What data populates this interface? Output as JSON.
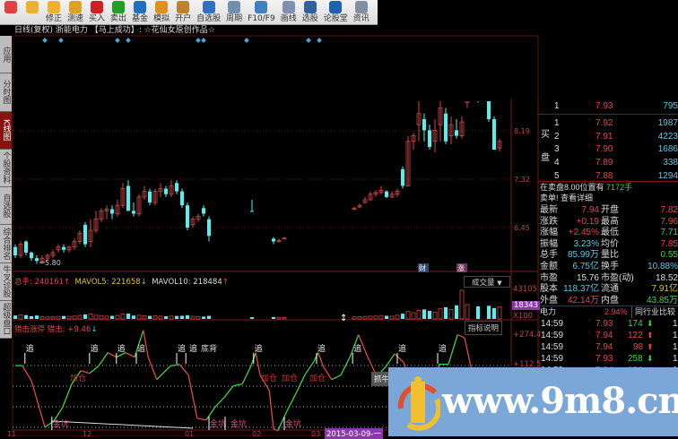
{
  "toolbar": {
    "items": [
      {
        "label": "",
        "icon": "color-blocks-icon",
        "color": "#e04040"
      },
      {
        "label": "",
        "icon": "back-arrow-icon",
        "color": "#f0b030"
      },
      {
        "label": "修正",
        "icon": "up-down-icon",
        "color": "#f0b030"
      },
      {
        "label": "测速",
        "icon": "speed-icon",
        "color": "#e0a020"
      },
      {
        "label": "买入",
        "icon": "buy-icon",
        "color": "#d02020"
      },
      {
        "label": "卖出",
        "icon": "sell-icon",
        "color": "#20a020"
      },
      {
        "label": "基金",
        "icon": "fund-icon",
        "color": "#2070c0"
      },
      {
        "label": "模拟",
        "icon": "search-icon",
        "color": "#e09020"
      },
      {
        "label": "开户",
        "icon": "lock-icon",
        "color": "#c08030"
      },
      {
        "label": "自选股",
        "icon": "star-icon",
        "color": "#3070c0"
      },
      {
        "label": "周期",
        "icon": "clock-icon",
        "color": "#7090b0"
      },
      {
        "label": "F10/F9",
        "icon": "f10-icon",
        "color": "#4080c0"
      },
      {
        "label": "画线",
        "icon": "pen-icon",
        "color": "#8090b0"
      },
      {
        "label": "选股",
        "icon": "select-stock-icon",
        "color": "#3060a0"
      },
      {
        "label": "论股堂",
        "icon": "forum-icon",
        "color": "#2060b0"
      },
      {
        "label": "资讯",
        "icon": "news-icon",
        "color": "#8090a0"
      }
    ]
  },
  "sidebar": {
    "items": [
      {
        "label": "应用"
      },
      {
        "label": "分时图"
      },
      {
        "label": "K线图",
        "active": true
      },
      {
        "label": "个股资料"
      },
      {
        "label": "自选股"
      },
      {
        "label": "综合排名"
      },
      {
        "label": "牛叉诊股"
      },
      {
        "label": "超级盘口"
      }
    ]
  },
  "chart": {
    "title": "日线(复权)  浙能电力 【马上成功】: ☆花仙女原创作品☆",
    "price_ticks": [
      "8.19",
      "7.32",
      "6.45"
    ],
    "low_marker": "5.80",
    "event_badges": [
      "财",
      "涨"
    ],
    "colors": {
      "up": "#d04848",
      "down": "#54f0f0",
      "grid": "#5a1010"
    }
  },
  "chart_data": {
    "type": "candlestick",
    "price_ticks": [
      8.19,
      7.32,
      6.45
    ],
    "candles": [
      {
        "bar": 0,
        "o": 6.1,
        "c": 5.95,
        "h": 6.15,
        "l": 5.9,
        "v": 5200
      },
      {
        "bar": 1,
        "o": 5.95,
        "c": 6.15,
        "h": 6.2,
        "l": 5.9,
        "v": 6100
      },
      {
        "bar": 2,
        "o": 6.2,
        "c": 6.0,
        "h": 6.22,
        "l": 5.95,
        "v": 5800
      },
      {
        "bar": 3,
        "o": 6.0,
        "c": 5.9,
        "h": 6.02,
        "l": 5.85,
        "v": 4200
      },
      {
        "bar": 4,
        "o": 5.9,
        "c": 5.85,
        "h": 5.95,
        "l": 5.8,
        "v": 5200
      },
      {
        "bar": 5,
        "o": 5.85,
        "c": 5.9,
        "h": 5.95,
        "l": 5.8,
        "v": 3600
      },
      {
        "bar": 6,
        "o": 5.9,
        "c": 5.95,
        "h": 5.98,
        "l": 5.85,
        "v": 3000
      },
      {
        "bar": 7,
        "o": 5.95,
        "c": 6.0,
        "h": 6.05,
        "l": 5.9,
        "v": 3300
      },
      {
        "bar": 8,
        "o": 6.05,
        "c": 6.1,
        "h": 6.15,
        "l": 6.0,
        "v": 3800
      },
      {
        "bar": 9,
        "o": 6.1,
        "c": 6.05,
        "h": 6.15,
        "l": 6.0,
        "v": 4500
      },
      {
        "bar": 10,
        "o": 6.05,
        "c": 6.1,
        "h": 6.12,
        "l": 6.0,
        "v": 3900
      },
      {
        "bar": 11,
        "o": 6.1,
        "c": 6.2,
        "h": 6.25,
        "l": 6.05,
        "v": 4300
      },
      {
        "bar": 12,
        "o": 6.2,
        "c": 6.35,
        "h": 6.4,
        "l": 6.15,
        "v": 5400
      },
      {
        "bar": 13,
        "o": 6.5,
        "c": 6.15,
        "h": 6.55,
        "l": 6.1,
        "v": 6900
      },
      {
        "bar": 14,
        "o": 6.2,
        "c": 6.4,
        "h": 6.6,
        "l": 6.1,
        "v": 7800
      },
      {
        "bar": 15,
        "o": 6.4,
        "c": 6.6,
        "h": 6.75,
        "l": 6.35,
        "v": 5600
      },
      {
        "bar": 16,
        "o": 6.6,
        "c": 6.75,
        "h": 6.8,
        "l": 6.55,
        "v": 5100
      },
      {
        "bar": 17,
        "o": 6.75,
        "c": 6.78,
        "h": 6.85,
        "l": 6.6,
        "v": 4300
      },
      {
        "bar": 18,
        "o": 6.78,
        "c": 6.7,
        "h": 6.85,
        "l": 6.6,
        "v": 4700
      },
      {
        "bar": 19,
        "o": 6.7,
        "c": 6.85,
        "h": 6.95,
        "l": 6.65,
        "v": 5300
      },
      {
        "bar": 20,
        "o": 6.85,
        "c": 7.15,
        "h": 7.25,
        "l": 6.8,
        "v": 7200
      },
      {
        "bar": 21,
        "o": 7.2,
        "c": 6.75,
        "h": 7.3,
        "l": 6.75,
        "v": 8100
      },
      {
        "bar": 22,
        "o": 6.75,
        "c": 6.7,
        "h": 6.9,
        "l": 6.65,
        "v": 5100
      },
      {
        "bar": 23,
        "o": 6.7,
        "c": 7.0,
        "h": 7.05,
        "l": 6.65,
        "v": 5500
      },
      {
        "bar": 24,
        "o": 7.0,
        "c": 7.1,
        "h": 7.2,
        "l": 6.95,
        "v": 4900
      },
      {
        "bar": 25,
        "o": 7.1,
        "c": 6.9,
        "h": 7.15,
        "l": 6.85,
        "v": 4600
      },
      {
        "bar": 26,
        "o": 6.9,
        "c": 7.1,
        "h": 7.15,
        "l": 6.85,
        "v": 4400
      },
      {
        "bar": 27,
        "o": 7.1,
        "c": 7.15,
        "h": 7.25,
        "l": 7.0,
        "v": 4200
      },
      {
        "bar": 28,
        "o": 7.15,
        "c": 7.05,
        "h": 7.2,
        "l": 7.0,
        "v": 4100
      },
      {
        "bar": 29,
        "o": 7.05,
        "c": 7.2,
        "h": 7.3,
        "l": 7.0,
        "v": 4300
      },
      {
        "bar": 30,
        "o": 7.25,
        "c": 7.1,
        "h": 7.3,
        "l": 7.05,
        "v": 4500
      },
      {
        "bar": 31,
        "o": 7.1,
        "c": 6.85,
        "h": 7.15,
        "l": 6.8,
        "v": 4800
      },
      {
        "bar": 32,
        "o": 6.85,
        "c": 6.45,
        "h": 6.9,
        "l": 6.4,
        "v": 5600
      },
      {
        "bar": 33,
        "o": 6.5,
        "c": 6.6,
        "h": 6.65,
        "l": 6.45,
        "v": 3900
      },
      {
        "bar": 34,
        "o": 6.6,
        "c": 6.65,
        "h": 6.7,
        "l": 6.55,
        "v": 3400
      },
      {
        "bar": 35,
        "o": 6.8,
        "c": 6.7,
        "h": 6.85,
        "l": 6.65,
        "v": 3500
      },
      {
        "bar": 36,
        "o": 6.6,
        "c": 6.3,
        "h": 6.65,
        "l": 6.2,
        "v": 4700
      },
      {
        "bar": 44,
        "o": 6.75,
        "c": 6.74,
        "h": 6.95,
        "l": 6.74,
        "v": 2600
      },
      {
        "bar": 48,
        "o": 6.25,
        "c": 6.2,
        "h": 6.28,
        "l": 6.15,
        "v": 2900
      },
      {
        "bar": 49,
        "o": 6.2,
        "c": 6.22,
        "h": 6.25,
        "l": 6.18,
        "v": 2400
      },
      {
        "bar": 50,
        "o": 6.25,
        "c": 6.26,
        "h": 6.28,
        "l": 6.24,
        "v": 2100
      },
      {
        "bar": 63,
        "o": 6.78,
        "c": 6.8,
        "h": 6.82,
        "l": 6.76,
        "v": 3100
      },
      {
        "bar": 64,
        "o": 6.82,
        "c": 6.85,
        "h": 6.88,
        "l": 6.8,
        "v": 3400
      },
      {
        "bar": 65,
        "o": 6.9,
        "c": 6.95,
        "h": 7.0,
        "l": 6.88,
        "v": 3800
      },
      {
        "bar": 66,
        "o": 6.95,
        "c": 7.05,
        "h": 7.1,
        "l": 6.93,
        "v": 4200
      },
      {
        "bar": 67,
        "o": 7.05,
        "c": 7.08,
        "h": 7.12,
        "l": 7.0,
        "v": 4400
      },
      {
        "bar": 68,
        "o": 7.08,
        "c": 7.12,
        "h": 7.2,
        "l": 7.05,
        "v": 5200
      },
      {
        "bar": 69,
        "o": 7.1,
        "c": 7.0,
        "h": 7.12,
        "l": 6.98,
        "v": 4800
      },
      {
        "bar": 70,
        "o": 7.0,
        "c": 7.05,
        "h": 7.1,
        "l": 6.98,
        "v": 4100
      },
      {
        "bar": 71,
        "o": 7.05,
        "c": 7.1,
        "h": 7.15,
        "l": 7.0,
        "v": 5600
      },
      {
        "bar": 72,
        "o": 7.5,
        "c": 7.2,
        "h": 7.55,
        "l": 7.15,
        "v": 7900
      },
      {
        "bar": 73,
        "o": 7.2,
        "c": 8.0,
        "h": 8.1,
        "l": 7.2,
        "v": 11200
      },
      {
        "bar": 74,
        "o": 8.0,
        "c": 8.1,
        "h": 8.15,
        "l": 7.85,
        "v": 9400
      },
      {
        "bar": 75,
        "o": 8.3,
        "c": 8.5,
        "h": 8.75,
        "l": 8.0,
        "v": 12800
      },
      {
        "bar": 76,
        "o": 8.4,
        "c": 8.2,
        "h": 8.5,
        "l": 8.0,
        "v": 14300
      },
      {
        "bar": 77,
        "o": 8.2,
        "c": 7.9,
        "h": 8.3,
        "l": 7.85,
        "v": 12100
      },
      {
        "bar": 78,
        "o": 8.0,
        "c": 8.2,
        "h": 8.4,
        "l": 7.8,
        "v": 10400
      },
      {
        "bar": 79,
        "o": 8.3,
        "c": 8.6,
        "h": 8.75,
        "l": 8.0,
        "v": 15700
      },
      {
        "bar": 80,
        "o": 8.5,
        "c": 8.0,
        "h": 8.6,
        "l": 7.95,
        "v": 17600
      },
      {
        "bar": 81,
        "o": 8.1,
        "c": 8.3,
        "h": 8.45,
        "l": 7.95,
        "v": 14200
      },
      {
        "bar": 82,
        "o": 8.2,
        "c": 8.1,
        "h": 8.4,
        "l": 8.05,
        "v": 20500
      },
      {
        "bar": 83,
        "o": 8.1,
        "c": 8.35,
        "h": 8.45,
        "l": 8.05,
        "v": 43105
      },
      {
        "bar": 84,
        "o": 8.7,
        "c": 8.75,
        "h": 8.8,
        "l": 8.6,
        "v": 21600
      },
      {
        "bar": 86,
        "o": 8.75,
        "c": 8.74,
        "h": 8.8,
        "l": 8.7,
        "v": 18900
      },
      {
        "bar": 88,
        "o": 8.8,
        "c": 8.4,
        "h": 8.85,
        "l": 8.35,
        "v": 19800
      },
      {
        "bar": 89,
        "o": 8.4,
        "c": 7.85,
        "h": 8.45,
        "l": 7.85,
        "v": 16400
      },
      {
        "bar": 90,
        "o": 7.88,
        "c": 8.0,
        "h": 8.05,
        "l": 7.82,
        "v": 18343
      }
    ],
    "volume_axis": {
      "max": 43105,
      "current": 18343,
      "unit": "X100"
    },
    "indicator": {
      "ticks": [
        "+274.4",
        "+112.5"
      ],
      "points": [
        [
          0,
          112
        ],
        [
          1.3,
          112
        ],
        [
          3,
          34
        ],
        [
          4.7,
          -128
        ],
        [
          5.5,
          -206
        ],
        [
          7.2,
          -174
        ],
        [
          8.8,
          -104
        ],
        [
          10.5,
          17
        ],
        [
          12.2,
          86
        ],
        [
          13.8,
          72
        ],
        [
          15.5,
          110
        ],
        [
          17.2,
          179
        ],
        [
          18.8,
          156
        ],
        [
          20.5,
          179
        ],
        [
          22.2,
          156
        ],
        [
          23.8,
          295
        ],
        [
          24.7,
          156
        ],
        [
          26.3,
          40
        ],
        [
          28.8,
          110
        ],
        [
          30.5,
          119
        ],
        [
          32.2,
          63
        ],
        [
          33.8,
          -160
        ],
        [
          35.5,
          -169
        ],
        [
          37.2,
          -100
        ],
        [
          38.8,
          -54
        ],
        [
          40.5,
          7
        ],
        [
          42.2,
          17
        ],
        [
          43.8,
          110
        ],
        [
          44.7,
          179
        ],
        [
          45.5,
          63
        ],
        [
          46.3,
          26
        ],
        [
          47.2,
          -16
        ],
        [
          48,
          -215
        ],
        [
          48.8,
          -224
        ],
        [
          50.5,
          -122
        ],
        [
          52.2,
          -30
        ],
        [
          53.8,
          63
        ],
        [
          55.5,
          133
        ],
        [
          56.3,
          179
        ],
        [
          57.2,
          110
        ],
        [
          58.8,
          40
        ],
        [
          60.5,
          63
        ],
        [
          62.2,
          156
        ],
        [
          63.8,
          272
        ],
        [
          65.5,
          156
        ],
        [
          67.2,
          57
        ],
        [
          68.8,
          104
        ],
        [
          70.5,
          173
        ],
        [
          72.2,
          128
        ],
        [
          73.8,
          10
        ],
        [
          75.5,
          -58
        ],
        [
          77.2,
          -35
        ],
        [
          78.8,
          119
        ],
        [
          80.5,
          119
        ],
        [
          82.2,
          272
        ],
        [
          83.5,
          256
        ],
        [
          84.7,
          104
        ],
        [
          86.3,
          -48
        ],
        [
          88,
          -187
        ],
        [
          89.7,
          -234
        ]
      ]
    }
  },
  "top_markers": {
    "bars": [
      5.5,
      8.5,
      19,
      21,
      34,
      35,
      43,
      54.5,
      56.5
    ],
    "color": "#4aa8d8"
  },
  "volume": {
    "total_label": "总手: 240161",
    "total_arrow": "↑",
    "mavol5": "MAVOL5: 221658",
    "mavol5_arrow": "↓",
    "mavol10": "MAVOL10: 218484",
    "mavol10_arrow": "↑",
    "selector": "成交量",
    "axis_max": "43105",
    "axis_current": "18343",
    "axis_unit": "X100"
  },
  "indicator": {
    "name": "猎击涨停 猎击: ",
    "value": "+9.46",
    "arrow": "↓",
    "help_button": "指标说明",
    "tick_top": "+274.4",
    "tick_mid": "+112.5",
    "signals": [
      {
        "text": "追",
        "bar": 1.8,
        "kind": "chase"
      },
      {
        "text": "追",
        "bar": 13.8,
        "kind": "chase"
      },
      {
        "text": "追",
        "bar": 18.8,
        "kind": "chase"
      },
      {
        "text": "追",
        "bar": 22.5,
        "kind": "chase"
      },
      {
        "text": "追",
        "bar": 30,
        "kind": "chase"
      },
      {
        "text": "追",
        "bar": 31.7,
        "kind": "chase"
      },
      {
        "text": "底背",
        "bar": 34,
        "kind": "note"
      },
      {
        "text": "追",
        "bar": 44.3,
        "kind": "chase"
      },
      {
        "text": "追",
        "bar": 56,
        "kind": "chase"
      },
      {
        "text": "追",
        "bar": 62.7,
        "kind": "chase"
      },
      {
        "text": "追",
        "bar": 71,
        "kind": "chase"
      },
      {
        "text": "追",
        "bar": 78.5,
        "kind": "chase"
      },
      {
        "text": "加仓",
        "bar": 10,
        "kind": "add"
      },
      {
        "text": "加仓",
        "bar": 45.5,
        "kind": "add"
      },
      {
        "text": "加仓",
        "bar": 49,
        "kind": "add"
      },
      {
        "text": "加仓",
        "bar": 54.5,
        "kind": "add"
      },
      {
        "text": "金坑",
        "bar": 6.8,
        "kind": "pit"
      },
      {
        "text": "金坑",
        "bar": 36,
        "kind": "pit"
      },
      {
        "text": "金坑",
        "bar": 39,
        "kind": "pit"
      },
      {
        "text": "金坑",
        "bar": 50,
        "kind": "pit"
      }
    ],
    "catch_bull": "抓牛"
  },
  "xaxis": {
    "labels": [
      {
        "text": "11",
        "bar": -1.5
      },
      {
        "text": "12",
        "bar": 12.5
      },
      {
        "text": "01",
        "bar": 31.5
      },
      {
        "text": "02",
        "bar": 44
      },
      {
        "text": "03",
        "bar": 55
      }
    ],
    "cursor_date": "2015-03-09-一"
  },
  "quote": {
    "sell": [
      {
        "level": "1",
        "price": "7.93",
        "vol": "795"
      }
    ],
    "buy_label_1": "买",
    "buy_label_2": "盘",
    "buy": [
      {
        "level": "1",
        "price": "7.92",
        "vol": "1987"
      },
      {
        "level": "2",
        "price": "7.91",
        "vol": "4223"
      },
      {
        "level": "3",
        "price": "7.90",
        "vol": "1686"
      },
      {
        "level": "4",
        "price": "7.89",
        "vol": "338"
      },
      {
        "level": "5",
        "price": "7.88",
        "vol": "1294"
      }
    ],
    "notice_a": "在卖盘8.00位置有",
    "notice_b": "7172手",
    "notice_c": "卖单! 查看详细",
    "stats": [
      {
        "l1": "最新",
        "v1": "7.94",
        "c1": "red",
        "l2": "开盘",
        "v2": "7.82",
        "c2": "red"
      },
      {
        "l1": "涨跌",
        "v1": "+0.19",
        "c1": "red",
        "l2": "最高",
        "v2": "7.96",
        "c2": "red"
      },
      {
        "l1": "涨幅",
        "v1": "+2.45%",
        "c1": "red",
        "l2": "最低",
        "v2": "7.71",
        "c2": "grn"
      },
      {
        "l1": "振幅",
        "v1": "3.23%",
        "c1": "cy",
        "l2": "均价",
        "v2": "7.85",
        "c2": "red"
      },
      {
        "l1": "总手",
        "v1": "85.99万",
        "c1": "cy",
        "l2": "量比",
        "v2": "0.55",
        "c2": "grn"
      },
      {
        "l1": "金额",
        "v1": "6.75亿",
        "c1": "cy",
        "l2": "换手",
        "v2": "10.88%",
        "c2": "cy"
      },
      {
        "l1": "市盈",
        "v1": "15.76",
        "c1": "wh",
        "l2": "市盈(动)",
        "v2": "18.52",
        "c2": "wh"
      },
      {
        "l1": "股本",
        "v1": "118.37亿",
        "c1": "cy",
        "l2": "流通",
        "v2": "7.91亿",
        "c2": "yl"
      },
      {
        "l1": "外盘",
        "v1": "42.14万",
        "c1": "red",
        "l2": "内盘",
        "v2": "43.85万",
        "c2": "grn"
      }
    ],
    "sector": "电力",
    "sector_pct": "2.94%",
    "sector_compare": "同行业比较",
    "ticks": [
      {
        "time": "14:59",
        "price": "7.93",
        "vol": "174",
        "dir": "down",
        "extra": "1"
      },
      {
        "time": "14:59",
        "price": "7.94",
        "vol": "122",
        "dir": "up",
        "extra": "1"
      },
      {
        "time": "14:59",
        "price": "7.94",
        "vol": "98",
        "dir": "up",
        "extra": "1"
      },
      {
        "time": "14:59",
        "price": "7.93",
        "vol": "258",
        "dir": "down",
        "extra": "1"
      },
      {
        "time": "14:59",
        "price": "7.94",
        "vol": "151",
        "dir": "up",
        "extra": "1"
      }
    ]
  },
  "watermark": {
    "text": "www.9m8.cn",
    "bg": "#7aa7d8"
  }
}
